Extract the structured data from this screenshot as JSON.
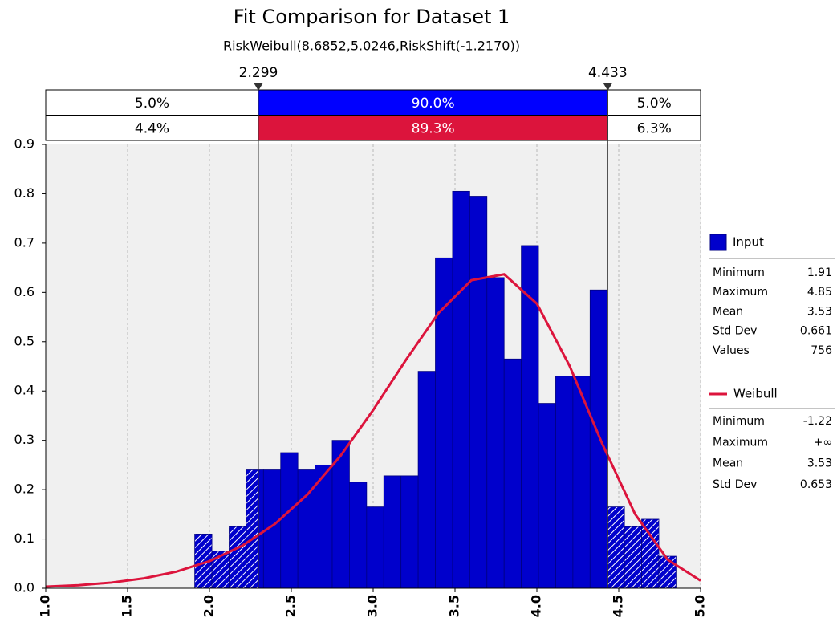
{
  "chart_data": {
    "type": "histogram",
    "title": "Fit Comparison for Dataset 1",
    "subtitle": "RiskWeibull(8.6852,5.0246,RiskShift(-1.2170))",
    "bins": [
      1.91,
      2.015,
      2.12,
      2.225,
      2.33,
      2.435,
      2.54,
      2.645,
      2.75,
      2.855,
      2.96,
      3.065,
      3.17,
      3.275,
      3.38,
      3.485,
      3.59,
      3.695,
      3.8,
      3.905,
      4.01,
      4.115,
      4.22,
      4.325,
      4.43,
      4.535,
      4.64,
      4.745,
      4.85
    ],
    "series": [
      {
        "name": "Input",
        "color": "#0000cc",
        "values": [
          0.11,
          0.075,
          0.125,
          0.24,
          0.24,
          0.275,
          0.24,
          0.25,
          0.3,
          0.215,
          0.165,
          0.228,
          0.228,
          0.44,
          0.67,
          0.805,
          0.795,
          0.63,
          0.465,
          0.695,
          0.375,
          0.43,
          0.43,
          0.605,
          0.165,
          0.125,
          0.14,
          0.065
        ],
        "stats": [
          [
            "Minimum",
            "1.91"
          ],
          [
            "Maximum",
            "4.85"
          ],
          [
            "Mean",
            "3.53"
          ],
          [
            "Std Dev",
            "0.661"
          ],
          [
            "Values",
            "756"
          ]
        ]
      },
      {
        "name": "Weibull",
        "color": "#dc143c",
        "x": [
          1.0,
          1.2,
          1.4,
          1.6,
          1.8,
          2.0,
          2.2,
          2.4,
          2.6,
          2.8,
          3.0,
          3.2,
          3.4,
          3.6,
          3.8,
          4.0,
          4.2,
          4.4,
          4.6,
          4.8,
          5.0
        ],
        "values": [
          0.0032,
          0.0062,
          0.0115,
          0.0201,
          0.0339,
          0.055,
          0.0862,
          0.1305,
          0.1906,
          0.2683,
          0.3615,
          0.463,
          0.5585,
          0.6248,
          0.6368,
          0.5772,
          0.4509,
          0.2925,
          0.1504,
          0.0577,
          0.0155
        ],
        "stats": [
          [
            "Minimum",
            "-1.22"
          ],
          [
            "Maximum",
            "+∞"
          ],
          [
            "Mean",
            "3.53"
          ],
          [
            "Std Dev",
            "0.653"
          ]
        ]
      }
    ],
    "delimiters": [
      2.299,
      4.433
    ],
    "delimiter_rows": [
      {
        "color": "#0000ff",
        "values": [
          5.0,
          90.0,
          5.0
        ],
        "value_labels": [
          "5.0%",
          "90.0%",
          "5.0%"
        ]
      },
      {
        "color": "#dc143c",
        "values": [
          4.4,
          89.3,
          6.3
        ],
        "value_labels": [
          "4.4%",
          "89.3%",
          "6.3%"
        ]
      }
    ],
    "xlim": [
      1,
      5
    ],
    "xticks": [
      {
        "value": 1,
        "label": "1.0"
      },
      1.5,
      {
        "value": 2,
        "label": "2.0"
      },
      2.5,
      {
        "value": 3,
        "label": "3.0"
      },
      3.5,
      {
        "value": 4,
        "label": "4.0"
      },
      4.5,
      {
        "value": 5,
        "label": "5.0"
      }
    ],
    "ylim": [
      0,
      0.9
    ],
    "yticks": [
      {
        "value": 0,
        "label": "0.0"
      },
      0.1,
      0.2,
      0.3,
      0.4,
      0.5,
      0.6,
      0.7,
      0.8,
      0.9
    ],
    "grid": true
  }
}
